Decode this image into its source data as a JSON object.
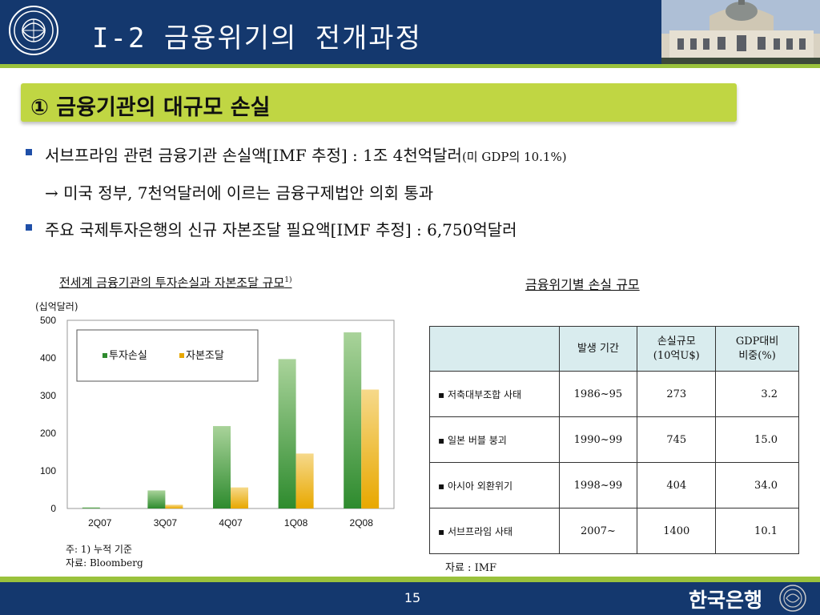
{
  "header": {
    "title": "I-2 금융위기의 전개과정",
    "colors": {
      "navy": "#14386e",
      "accent": "#9ac23c",
      "section": "#c0d643"
    }
  },
  "section": {
    "title": "① 금융기관의 대규모 손실"
  },
  "bullets": [
    {
      "main": "서브프라임 관련 금융기관 손실액[IMF 추정] : 1조 4천억달러",
      "suffix": "(미 GDP의 10.1%)"
    },
    {
      "main": "→ 미국 정부, 7천억달러에 이르는 금융구제법안 의회 통과"
    },
    {
      "main": "주요 국제투자은행의 신규 자본조달 필요액[IMF 추정] : 6,750억달러"
    }
  ],
  "chart_title": {
    "text": "전세계 금융기관의 투자손실과 자본조달 규모",
    "sup": "1)"
  },
  "chart_unit": "(십억달러)",
  "chart_data": {
    "type": "bar",
    "categories": [
      "2Q07",
      "3Q07",
      "4Q07",
      "1Q08",
      "2Q08"
    ],
    "series": [
      {
        "name": "투자손실",
        "values": [
          3,
          48,
          219,
          397,
          468
        ],
        "color": "#2e8b2e"
      },
      {
        "name": "자본조달",
        "values": [
          0,
          10,
          56,
          146,
          316
        ],
        "color": "#e8a800"
      }
    ],
    "yticks": [
      0,
      100,
      200,
      300,
      400,
      500
    ],
    "ylim": [
      0,
      500
    ],
    "legend": "top-left",
    "grid": false
  },
  "chart_notes": [
    "주: 1) 누적 기준",
    "자료: Bloomberg"
  ],
  "table_title": "금융위기별  손실 규모",
  "table": {
    "headers": [
      "",
      "발생 기간",
      "손실규모\n(10억U$)",
      "GDP대비\n비중(%)"
    ],
    "rows": [
      [
        "▪ 저축대부조합 사태",
        "1986~95",
        "273",
        "3.2"
      ],
      [
        "▪ 일본 버블 붕괴",
        "1990~99",
        "745",
        "15.0"
      ],
      [
        "▪ 아시아 외환위기",
        "1998~99",
        "404",
        "34.0"
      ],
      [
        "▪ 서브프라임 사태",
        "2007~",
        "1400",
        "10.1"
      ]
    ]
  },
  "table_source": "자료 : IMF",
  "footer": {
    "page": "15",
    "brand": "한국은행"
  }
}
